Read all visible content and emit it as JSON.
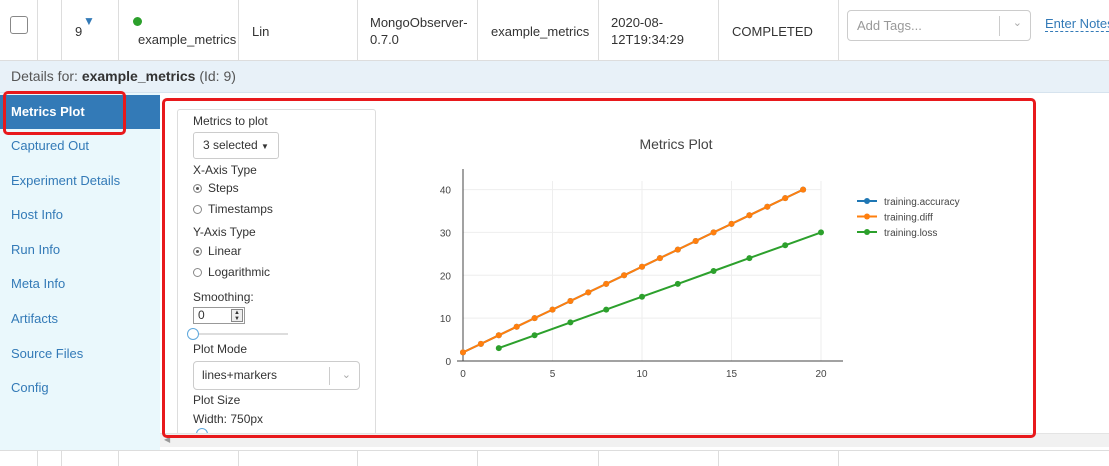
{
  "run_row": {
    "id": "9",
    "experiment_name": "example_metrics",
    "host": "Lin",
    "observer": [
      "MongoObserver-",
      "0.7.0"
    ],
    "experiment": "example_metrics",
    "start_time": [
      "2020-08-",
      "12T19:34:29"
    ],
    "status": "COMPLETED",
    "status_color": "#2ca02c",
    "tags_placeholder": "Add Tags...",
    "notes_link": "Enter Notes"
  },
  "details": {
    "prefix": "Details for: ",
    "name": "example_metrics",
    "id_text": "(Id: 9)"
  },
  "sidebar": {
    "items": [
      {
        "label": "Metrics Plot",
        "active": true
      },
      {
        "label": "Captured Out"
      },
      {
        "label": "Experiment Details"
      },
      {
        "label": "Host Info"
      },
      {
        "label": "Run Info"
      },
      {
        "label": "Meta Info"
      },
      {
        "label": "Artifacts"
      },
      {
        "label": "Source Files"
      },
      {
        "label": "Config"
      }
    ]
  },
  "controls": {
    "metrics_label": "Metrics to plot",
    "metrics_button": "3 selected",
    "xaxis_label": "X-Axis Type",
    "xaxis_options": [
      "Steps",
      "Timestamps"
    ],
    "xaxis_selected": "Steps",
    "yaxis_label": "Y-Axis Type",
    "yaxis_options": [
      "Linear",
      "Logarithmic"
    ],
    "yaxis_selected": "Linear",
    "smoothing_label": "Smoothing:",
    "smoothing_value": "0",
    "plot_mode_label": "Plot Mode",
    "plot_mode_value": "lines+markers",
    "plot_size_label": "Plot Size",
    "width_label": "Width: 750px"
  },
  "chart_data": {
    "type": "line",
    "title": "Metrics Plot",
    "xlabel": "",
    "ylabel": "",
    "xlim": [
      0,
      20
    ],
    "ylim": [
      0,
      42
    ],
    "xticks": [
      0,
      5,
      10,
      15,
      20
    ],
    "yticks": [
      0,
      10,
      20,
      30,
      40
    ],
    "grid": true,
    "legend_position": "right",
    "series": [
      {
        "name": "training.accuracy",
        "color": "#1f77b4",
        "x": [
          0,
          1,
          2,
          3,
          4,
          5,
          6,
          7,
          8,
          9,
          10,
          11,
          12,
          13,
          14,
          15,
          16,
          17,
          18,
          19
        ],
        "y": [
          2,
          4,
          6,
          8,
          10,
          12,
          14,
          16,
          18,
          20,
          22,
          24,
          26,
          28,
          30,
          32,
          34,
          36,
          38,
          40
        ]
      },
      {
        "name": "training.diff",
        "color": "#ff7f0e",
        "x": [
          0,
          1,
          2,
          3,
          4,
          5,
          6,
          7,
          8,
          9,
          10,
          11,
          12,
          13,
          14,
          15,
          16,
          17,
          18,
          19
        ],
        "y": [
          2,
          4,
          6,
          8,
          10,
          12,
          14,
          16,
          18,
          20,
          22,
          24,
          26,
          28,
          30,
          32,
          34,
          36,
          38,
          40
        ]
      },
      {
        "name": "training.loss",
        "color": "#2ca02c",
        "x": [
          2,
          4,
          6,
          8,
          10,
          12,
          14,
          16,
          18,
          20
        ],
        "y": [
          3,
          6,
          9,
          12,
          15,
          18,
          21,
          24,
          27,
          30
        ]
      }
    ]
  }
}
